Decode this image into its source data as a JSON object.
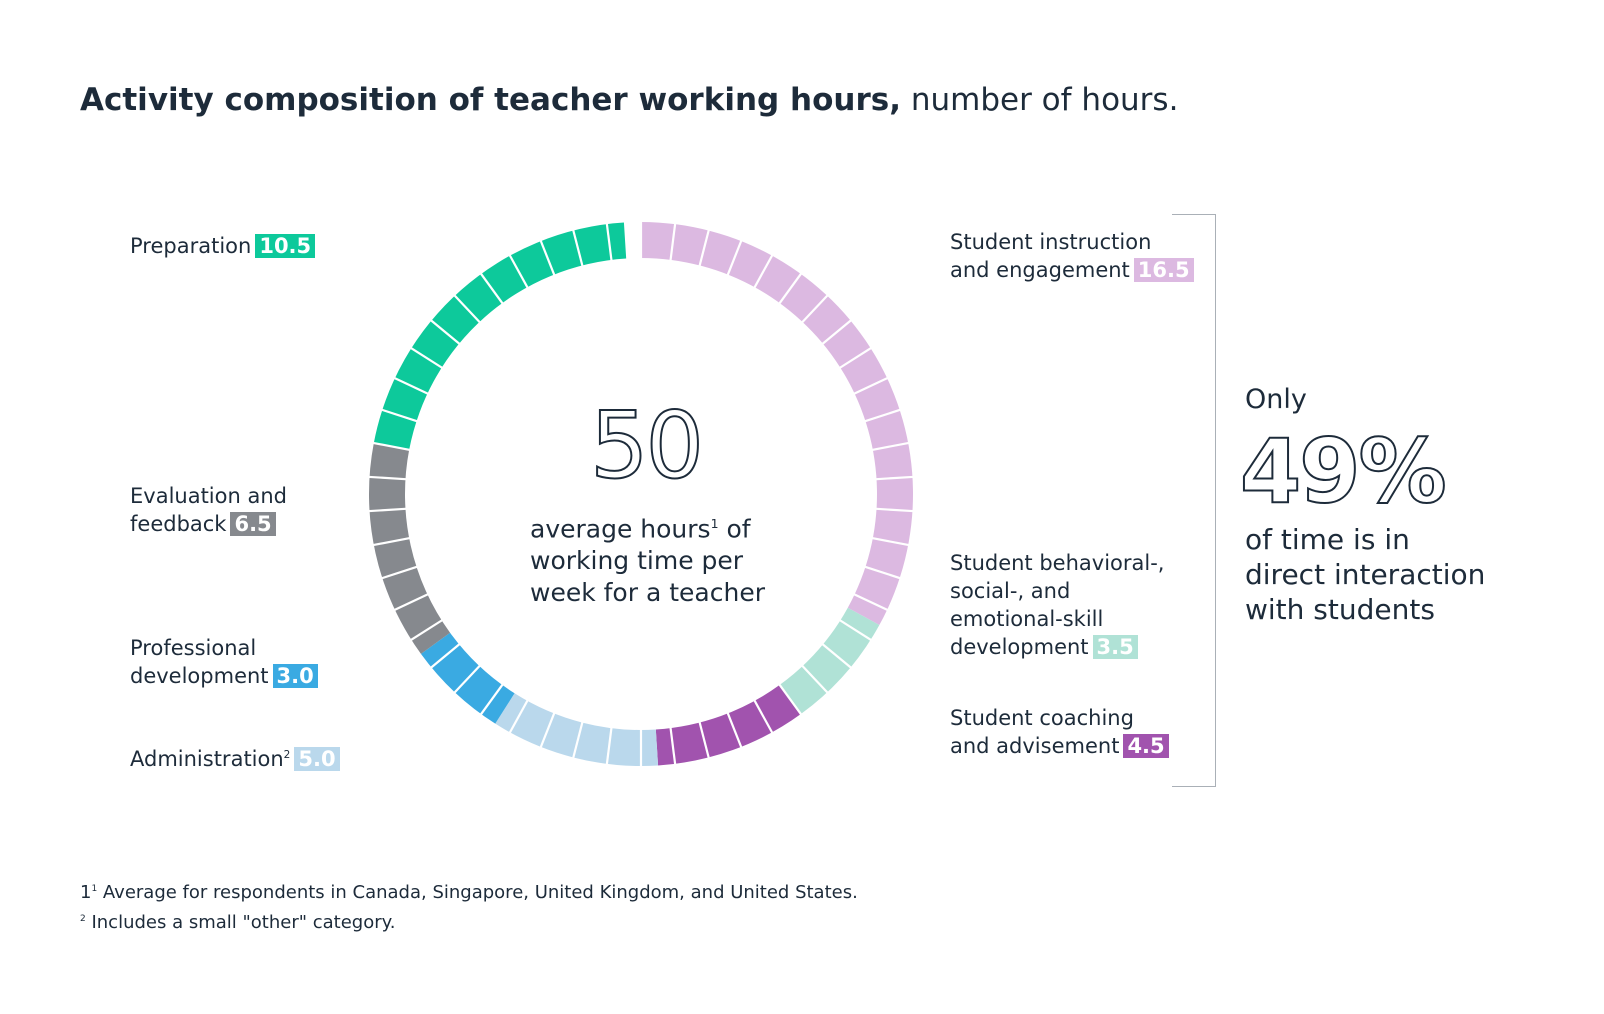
{
  "title": {
    "bold": "Activity composition of teacher working hours,",
    "normal": "number of hours."
  },
  "chart_data": {
    "type": "pie",
    "total": 50,
    "segments": [
      {
        "name": "Student instruction and engagement",
        "value": 16.5,
        "color": "#dcb9e1"
      },
      {
        "name": "Student behavioral-, social-, and emotional-skill development",
        "value": 3.5,
        "color": "#b0e2d6"
      },
      {
        "name": "Student coaching and advisement",
        "value": 4.5,
        "color": "#a153ae"
      },
      {
        "name": "Administration",
        "value": 5.0,
        "color": "#bad8ec"
      },
      {
        "name": "Professional development",
        "value": 3.0,
        "color": "#3aaae2"
      },
      {
        "name": "Evaluation and feedback",
        "value": 6.5,
        "color": "#86898e"
      },
      {
        "name": "Preparation",
        "value": 10.5,
        "color": "#0dc99b"
      }
    ]
  },
  "labels": {
    "preparation": {
      "text": "Preparation",
      "value": "10.5",
      "color": "#0dc99b"
    },
    "evaluation": {
      "line1": "Evaluation and",
      "line2": "feedback",
      "value": "6.5",
      "color": "#86898e"
    },
    "professional": {
      "line1": "Professional",
      "line2": "development",
      "value": "3.0",
      "color": "#3aaae2"
    },
    "administration": {
      "text": "Administration",
      "sup": "2",
      "value": "5.0",
      "color": "#bad8ec"
    },
    "instruction": {
      "line1": "Student instruction",
      "line2": "and engagement",
      "value": "16.5",
      "color": "#dcb9e1"
    },
    "behavioral": {
      "line1": "Student behavioral-,",
      "line2": "social-, and",
      "line3": "emotional-skill",
      "line4": "development",
      "value": "3.5",
      "color": "#b0e2d6"
    },
    "coaching": {
      "line1": "Student coaching",
      "line2": "and advisement",
      "value": "4.5",
      "color": "#a153ae"
    }
  },
  "center": {
    "number": "50",
    "line1a": "average hours",
    "sup": "1",
    "line1b": " of",
    "line2": "working time per",
    "line3": "week for a teacher"
  },
  "callout": {
    "only": "Only",
    "percent": "49%",
    "line1": "of time is in",
    "line2": "direct interaction",
    "line3": "with students"
  },
  "footnotes": {
    "f1_num": "1",
    "f1_sup": "1",
    "f1_text": " Average for respondents in Canada, Singapore, United Kingdom, and United States.",
    "f2_sup": "2",
    "f2_text": " Includes a small \"other\" category."
  }
}
